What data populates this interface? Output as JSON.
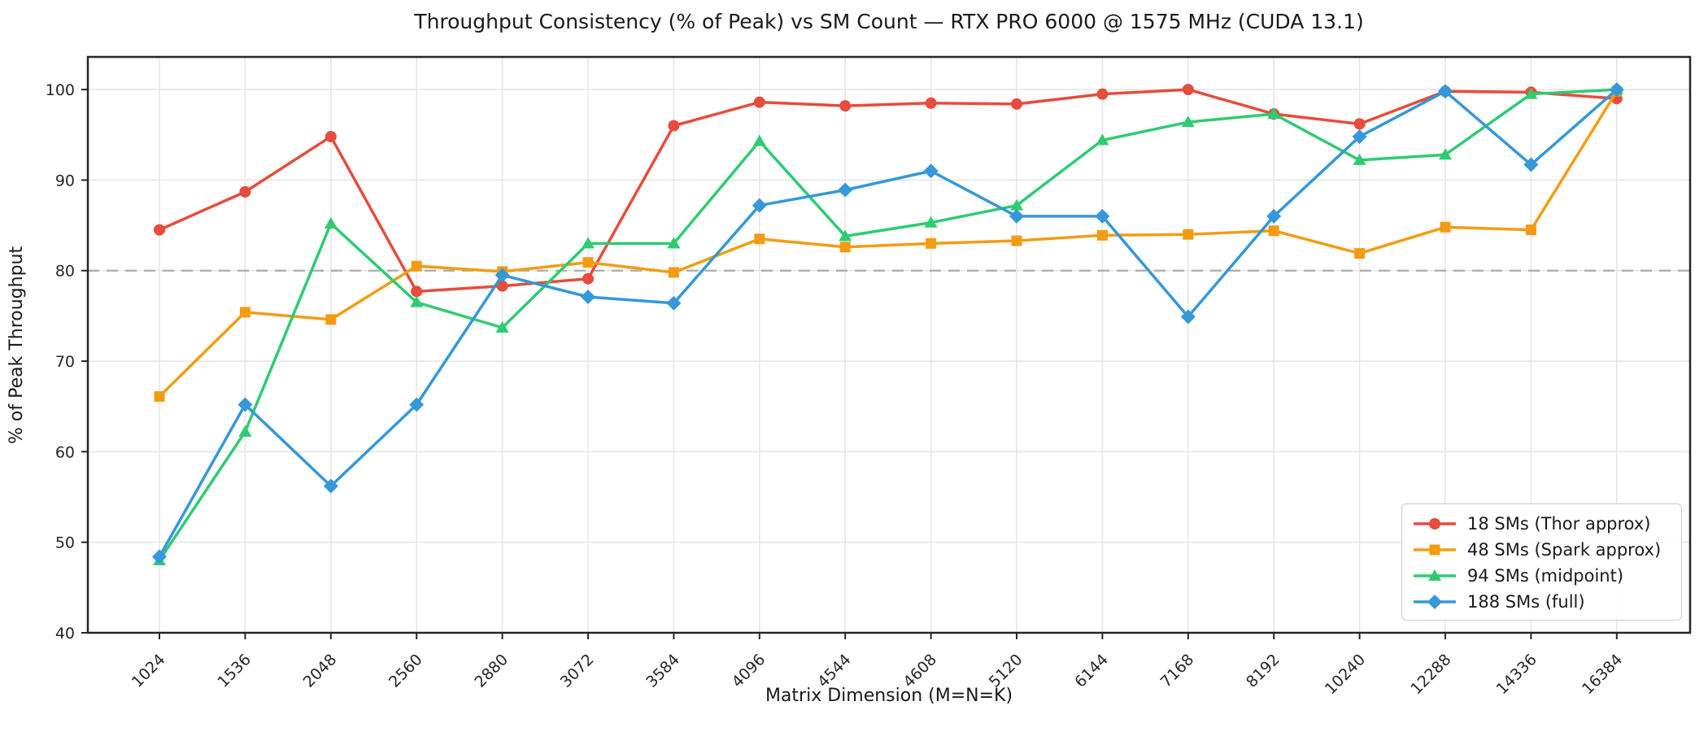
{
  "title": "Throughput Consistency (% of Peak) vs SM Count — RTX PRO 6000 @ 1575 MHz (CUDA 13.1)",
  "x_axis_label": "Matrix Dimension (M=N=K)",
  "y_axis_label": "% of Peak Throughput",
  "y_tick_labels": [
    "40",
    "50",
    "60",
    "70",
    "80",
    "90",
    "100"
  ],
  "chart_data": {
    "type": "line",
    "title": "Throughput Consistency (% of Peak) vs SM Count — RTX PRO 6000 @ 1575 MHz (CUDA 13.1)",
    "xlabel": "Matrix Dimension (M=N=K)",
    "ylabel": "% of Peak Throughput",
    "categories": [
      "1024",
      "1536",
      "2048",
      "2560",
      "2880",
      "3072",
      "3584",
      "4096",
      "4544",
      "4608",
      "5120",
      "6144",
      "7168",
      "8192",
      "10240",
      "12288",
      "14336",
      "16384"
    ],
    "y_ticks": [
      40,
      50,
      60,
      70,
      80,
      90,
      100
    ],
    "ylim": [
      40,
      103.6
    ],
    "grid": true,
    "legend_position": "lower right",
    "reference_line": {
      "value": 80,
      "color": "#ababab",
      "style": "dashed"
    },
    "series": [
      {
        "name": "18 SMs (Thor approx)",
        "color": "#e74c3c",
        "marker": "circle",
        "values": [
          84.5,
          88.7,
          94.8,
          77.7,
          78.3,
          79.1,
          96.0,
          98.6,
          98.2,
          98.5,
          98.4,
          99.5,
          100.0,
          97.3,
          96.2,
          99.8,
          99.7,
          99.0
        ]
      },
      {
        "name": "48 SMs (Spark approx)",
        "color": "#f39c12",
        "marker": "square",
        "values": [
          66.1,
          75.4,
          74.6,
          80.5,
          79.9,
          80.9,
          79.8,
          83.5,
          82.6,
          83.0,
          83.3,
          83.9,
          84.0,
          84.4,
          81.9,
          84.8,
          84.5,
          99.8
        ]
      },
      {
        "name": "94 SMs (midpoint)",
        "color": "#2ecc71",
        "marker": "triangle",
        "values": [
          48.0,
          62.2,
          85.2,
          76.5,
          73.7,
          83.0,
          83.0,
          94.3,
          83.8,
          85.3,
          87.2,
          94.4,
          96.4,
          97.3,
          92.2,
          92.8,
          99.5,
          100.0
        ]
      },
      {
        "name": "188 SMs (full)",
        "color": "#3498db",
        "marker": "diamond",
        "values": [
          48.4,
          65.2,
          56.2,
          65.2,
          79.5,
          77.1,
          76.4,
          87.2,
          88.9,
          91.0,
          86.0,
          86.0,
          74.9,
          86.0,
          94.8,
          99.8,
          91.7,
          100.0
        ]
      }
    ]
  },
  "style": {
    "grid_color": "#e7e7e7",
    "spine_color": "#262626",
    "tick_label_color": "#262626"
  }
}
